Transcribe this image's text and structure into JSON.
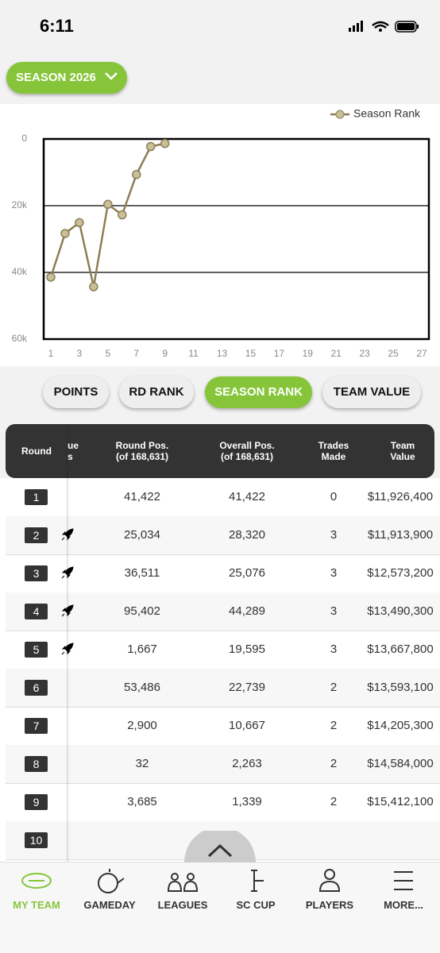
{
  "status_bar": {
    "time": "6:11"
  },
  "season_button": "SEASON 2026",
  "chart_data": {
    "type": "line",
    "x": [
      1,
      2,
      3,
      4,
      5,
      6,
      7,
      8,
      9
    ],
    "series": [
      {
        "name": "Season Rank",
        "color": "#8c7f55",
        "values": [
          41422,
          28320,
          25076,
          44289,
          19595,
          22739,
          10667,
          2263,
          1339
        ]
      }
    ],
    "xlim": [
      0.5,
      27.5
    ],
    "xticks": [
      1,
      3,
      5,
      7,
      9,
      11,
      13,
      15,
      17,
      19,
      21,
      23,
      25,
      27
    ],
    "ylim": [
      0,
      60000
    ],
    "invert_y": true,
    "yticks": [
      0,
      {
        "value": 20000,
        "label": "20k"
      },
      {
        "value": 40000,
        "label": "40k"
      },
      {
        "value": 60000,
        "label": "60k"
      }
    ],
    "grid": true,
    "legend": "top-right"
  },
  "tabs": [
    {
      "label": "POINTS"
    },
    {
      "label": "RD RANK"
    },
    {
      "label": "SEASON RANK",
      "active": true
    },
    {
      "label": "TEAM VALUE"
    }
  ],
  "table": {
    "headers": [
      [
        "Round"
      ],
      [
        "ue",
        "s"
      ],
      [
        "Round Pos.",
        "(of 168,631)"
      ],
      [
        "Overall Pos.",
        "(of 168,631)"
      ],
      [
        "Trades",
        "Made"
      ],
      [
        "Team",
        "Value"
      ]
    ],
    "rows": [
      {
        "round": "1",
        "round_pos": "41,422",
        "overall_pos": "41,422",
        "trades": "0",
        "team_value": "$11,926,400"
      },
      {
        "round": "2",
        "round_pos": "25,034",
        "overall_pos": "28,320",
        "trades": "3",
        "boost": true,
        "team_value": "$11,913,900"
      },
      {
        "round": "3",
        "round_pos": "36,511",
        "overall_pos": "25,076",
        "trades": "3",
        "boost": true,
        "team_value": "$12,573,200"
      },
      {
        "round": "4",
        "round_pos": "95,402",
        "overall_pos": "44,289",
        "trades": "3",
        "boost": true,
        "team_value": "$13,490,300"
      },
      {
        "round": "5",
        "round_pos": "1,667",
        "overall_pos": "19,595",
        "trades": "3",
        "boost": true,
        "team_value": "$13,667,800"
      },
      {
        "round": "6",
        "round_pos": "53,486",
        "overall_pos": "22,739",
        "trades": "2",
        "team_value": "$13,593,100"
      },
      {
        "round": "7",
        "round_pos": "2,900",
        "overall_pos": "10,667",
        "trades": "2",
        "team_value": "$14,205,300"
      },
      {
        "round": "8",
        "round_pos": "32",
        "overall_pos": "2,263",
        "trades": "2",
        "team_value": "$14,584,000"
      },
      {
        "round": "9",
        "round_pos": "3,685",
        "overall_pos": "1,339",
        "trades": "2",
        "team_value": "$15,412,100"
      },
      {
        "round": "10"
      }
    ]
  },
  "nav": [
    {
      "label": "MY TEAM",
      "active": true
    },
    {
      "label": "GAMEDAY"
    },
    {
      "label": "LEAGUES"
    },
    {
      "label": "SC CUP"
    },
    {
      "label": "PLAYERS"
    },
    {
      "label": "MORE..."
    }
  ]
}
